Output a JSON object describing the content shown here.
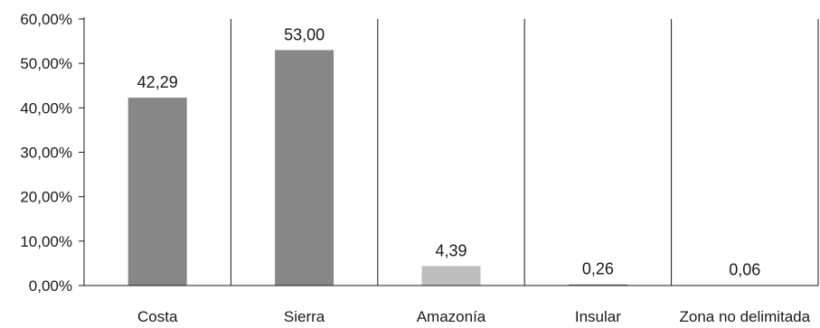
{
  "chart_data": {
    "type": "bar",
    "categories": [
      "Costa",
      "Sierra",
      "Amazonía",
      "Insular",
      "Zona no delimitada"
    ],
    "values": [
      42.29,
      53.0,
      4.39,
      0.26,
      0.06
    ],
    "data_labels": [
      "42,29",
      "53,00",
      "4,39",
      "0,26",
      "0,06"
    ],
    "bar_colors": [
      "#878787",
      "#878787",
      "#bebebe",
      "#878787",
      "#878787"
    ],
    "ylim": [
      0,
      60
    ],
    "yticks": [
      0,
      10,
      20,
      30,
      40,
      50,
      60
    ],
    "ytick_labels": [
      "0,00%",
      "10,00%",
      "20,00%",
      "30,00%",
      "40,00%",
      "50,00%",
      "60,00%"
    ],
    "grid": "vertical category separators",
    "legend": "none",
    "title": "",
    "xlabel": "",
    "ylabel": ""
  }
}
